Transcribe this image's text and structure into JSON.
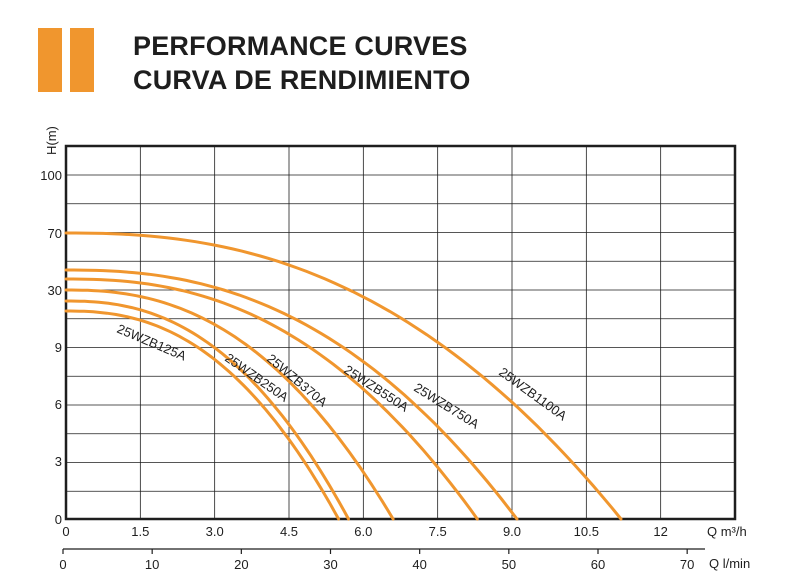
{
  "header": {
    "title_line1": "PERFORMANCE CURVES",
    "title_line2": "CURVA DE RENDIMIENTO",
    "accent_color": "#f0962e"
  },
  "chart_data": {
    "type": "line",
    "title": "PERFORMANCE CURVES / CURVA DE RENDIMIENTO",
    "ylabel": "H(m)",
    "xlabel": "Q m³/h",
    "xlabel_secondary": "Q l/min",
    "y_ticks": [
      "0",
      "3",
      "6",
      "9",
      "30",
      "70",
      "100"
    ],
    "x_ticks": [
      "0",
      "1.5",
      "3.0",
      "4.5",
      "6.0",
      "7.5",
      "9.0",
      "10.5",
      "12"
    ],
    "x_ticks_secondary": [
      "0",
      "10",
      "20",
      "30",
      "40",
      "50",
      "60",
      "70"
    ],
    "xlim": [
      0,
      13.5
    ],
    "xlim_secondary": [
      0,
      75
    ],
    "grid": true,
    "curve_color": "#f0962e",
    "series": [
      {
        "name": "25WZB125A",
        "shutoff_head_label_y": 20,
        "max_flow_m3h": 5.5
      },
      {
        "name": "25WZB250A",
        "shutoff_head_label_y": 25,
        "max_flow_m3h": 5.7
      },
      {
        "name": "25WZB370A",
        "shutoff_head_label_y": 30,
        "max_flow_m3h": 6.6
      },
      {
        "name": "25WZB550A",
        "shutoff_head_label_y": 35,
        "max_flow_m3h": 8.3
      },
      {
        "name": "25WZB750A",
        "shutoff_head_label_y": 40,
        "max_flow_m3h": 9.1
      },
      {
        "name": "25WZB1100A",
        "shutoff_head_label_y": 70,
        "max_flow_m3h": 11.2
      }
    ]
  }
}
